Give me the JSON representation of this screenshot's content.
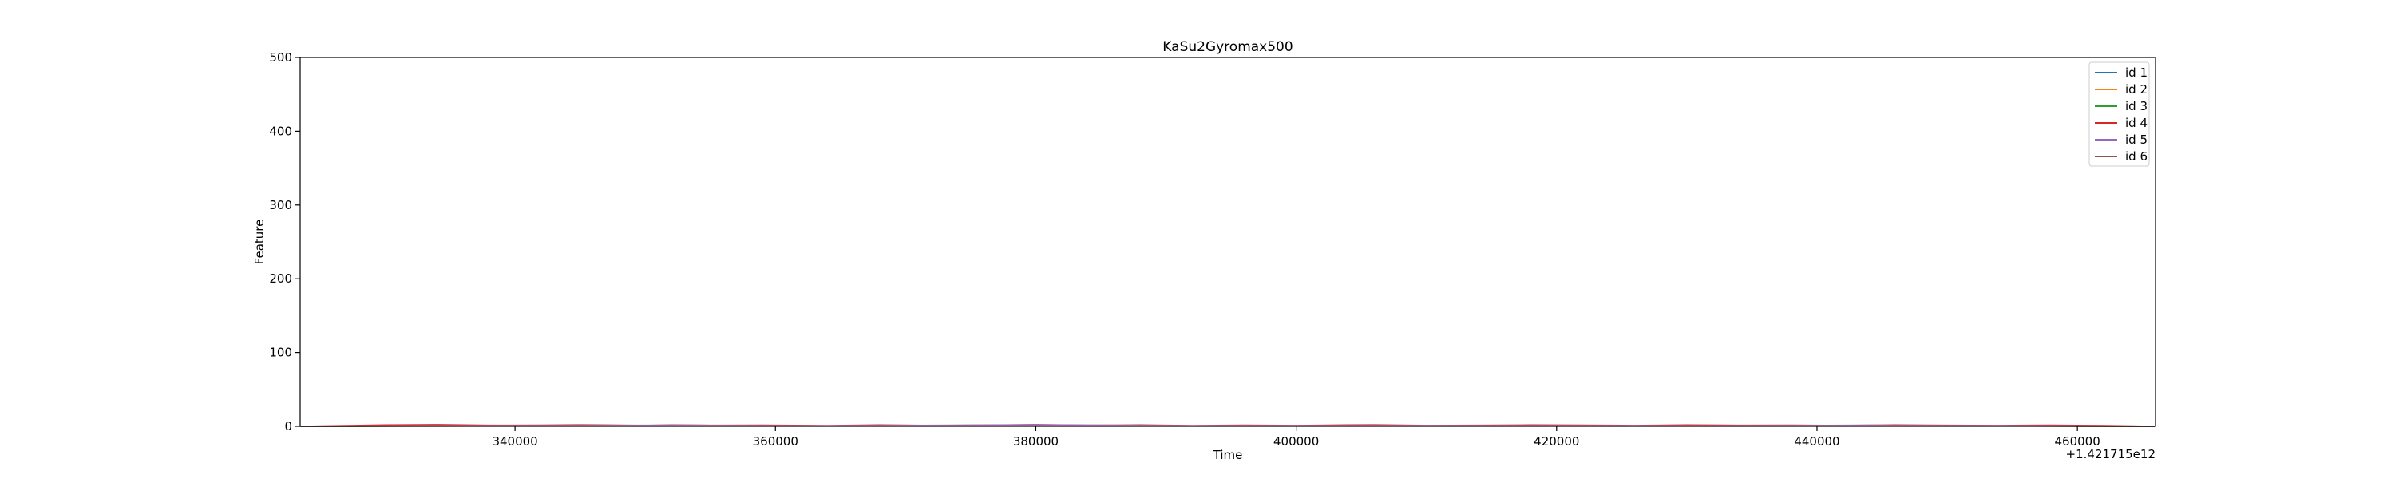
{
  "chart_data": {
    "type": "line",
    "title": "KaSu2Gyromax500",
    "xlabel": "Time",
    "ylabel": "Feature",
    "x_offset_label": "+1.421715e12",
    "xlim": [
      323500,
      466000
    ],
    "ylim": [
      0,
      500
    ],
    "x_ticks": [
      340000,
      360000,
      380000,
      400000,
      420000,
      440000,
      460000
    ],
    "x_tick_labels": [
      "340000",
      "360000",
      "380000",
      "400000",
      "420000",
      "440000",
      "460000"
    ],
    "y_ticks": [
      0,
      100,
      200,
      300,
      400,
      500
    ],
    "y_tick_labels": [
      "0",
      "100",
      "200",
      "300",
      "400",
      "500"
    ],
    "grid": false,
    "legend_position": "top-right",
    "series": [
      {
        "name": "id 1",
        "color": "#1f77b4",
        "x": [
          323500,
          330000,
          338000,
          340000,
          350000,
          360000,
          370000,
          378000,
          380000,
          382000,
          390000,
          400000,
          410000,
          419000,
          422000,
          425000,
          430000,
          438000,
          441000,
          444000,
          450000,
          459000,
          466000
        ],
        "values": [
          0,
          0.3,
          0.6,
          0.4,
          0.8,
          0.5,
          0.3,
          1.2,
          1.6,
          1.0,
          0.4,
          0.3,
          0.5,
          1.0,
          1.2,
          0.8,
          0.4,
          0.7,
          1.0,
          0.9,
          0.5,
          1.0,
          0
        ]
      },
      {
        "name": "id 2",
        "color": "#ff7f0e",
        "x": [
          323500,
          335000,
          345000,
          355000,
          365000,
          375000,
          385000,
          395000,
          405000,
          415000,
          425000,
          435000,
          445000,
          455000,
          466000
        ],
        "values": [
          0,
          0.5,
          0.4,
          0.6,
          0.3,
          0.5,
          0.4,
          0.3,
          0.6,
          0.5,
          0.4,
          0.5,
          0.6,
          0.4,
          0
        ]
      },
      {
        "name": "id 3",
        "color": "#2ca02c",
        "x": [
          323500,
          336000,
          348000,
          358000,
          368000,
          378000,
          388000,
          398000,
          408000,
          418000,
          428000,
          438000,
          448000,
          458000,
          466000
        ],
        "values": [
          0,
          0.3,
          0.5,
          0.4,
          0.3,
          0.5,
          0.4,
          0.3,
          0.4,
          0.5,
          0.3,
          0.4,
          0.5,
          0.3,
          0
        ]
      },
      {
        "name": "id 4",
        "color": "#d62728",
        "x": [
          323500,
          330000,
          334000,
          338000,
          342000,
          345000,
          350000,
          352000,
          356000,
          359000,
          364000,
          368000,
          372000,
          376000,
          380000,
          384000,
          388000,
          392000,
          396000,
          400000,
          404000,
          406000,
          410000,
          414000,
          418000,
          422000,
          426000,
          430000,
          434000,
          438000,
          442000,
          446000,
          450000,
          454000,
          458000,
          462000,
          466000
        ],
        "values": [
          0,
          1.8,
          2.2,
          1.4,
          1.6,
          2.0,
          1.2,
          1.8,
          1.4,
          1.6,
          1.0,
          1.8,
          1.2,
          1.6,
          2.2,
          1.4,
          1.8,
          1.0,
          1.6,
          1.2,
          1.8,
          2.0,
          1.2,
          1.4,
          1.8,
          1.6,
          1.2,
          1.8,
          1.4,
          1.6,
          1.2,
          1.8,
          1.4,
          1.2,
          1.6,
          1.0,
          0
        ]
      },
      {
        "name": "id 5",
        "color": "#9467bd",
        "x": [
          323500,
          338000,
          350000,
          352000,
          362000,
          378000,
          380000,
          392000,
          406000,
          420000,
          432000,
          444000,
          446000,
          458000,
          466000
        ],
        "values": [
          0,
          0.8,
          1.4,
          1.6,
          0.6,
          1.8,
          2.0,
          0.8,
          1.0,
          0.9,
          0.7,
          1.6,
          1.2,
          0.6,
          0
        ]
      },
      {
        "name": "id 6",
        "color": "#8c564b",
        "x": [
          323500,
          334000,
          344000,
          354000,
          364000,
          374000,
          384000,
          394000,
          404000,
          414000,
          424000,
          434000,
          444000,
          454000,
          466000
        ],
        "values": [
          0,
          0.4,
          0.6,
          0.5,
          0.4,
          0.6,
          0.5,
          0.4,
          0.6,
          0.5,
          0.4,
          0.5,
          0.6,
          0.4,
          0
        ]
      }
    ]
  }
}
